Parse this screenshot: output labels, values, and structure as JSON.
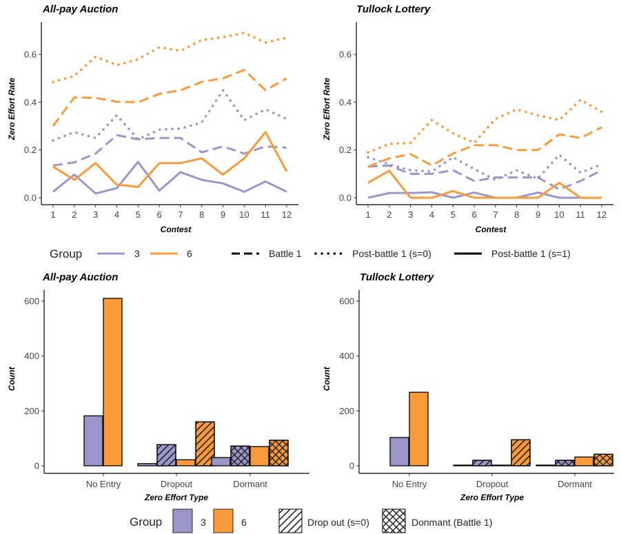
{
  "colors": {
    "group3": "#9a96c9",
    "group6": "#fb9a3b",
    "axis": "#000000",
    "bar_stroke": "#000000"
  },
  "chart_data": [
    {
      "type": "line",
      "title": "All-pay Auction",
      "xlabel": "Contest",
      "ylabel": "Zero Effort Rate",
      "x": [
        1,
        2,
        3,
        4,
        5,
        6,
        7,
        8,
        9,
        10,
        11,
        12
      ],
      "xlim": [
        1,
        12
      ],
      "ylim": [
        0,
        0.7
      ],
      "yticks": [
        0.0,
        0.2,
        0.4,
        0.6
      ],
      "ytick_labels": [
        "0.0",
        "0.2",
        "0.4",
        "0.6"
      ],
      "grid": false,
      "series": [
        {
          "group": "3",
          "type": "Battle 1",
          "values": [
            0.135,
            0.148,
            0.185,
            0.262,
            0.245,
            0.25,
            0.25,
            0.19,
            0.215,
            0.185,
            0.215,
            0.21
          ]
        },
        {
          "group": "3",
          "type": "Post-battle 1 (s=0)",
          "values": [
            0.24,
            0.275,
            0.25,
            0.345,
            0.245,
            0.285,
            0.29,
            0.315,
            0.45,
            0.325,
            0.37,
            0.33
          ]
        },
        {
          "group": "3",
          "type": "Post-battle 1 (s=1)",
          "values": [
            0.025,
            0.097,
            0.018,
            0.04,
            0.15,
            0.03,
            0.107,
            0.075,
            0.06,
            0.025,
            0.068,
            0.025
          ]
        },
        {
          "group": "6",
          "type": "Battle 1",
          "values": [
            0.3,
            0.42,
            0.418,
            0.402,
            0.4,
            0.435,
            0.45,
            0.485,
            0.5,
            0.535,
            0.45,
            0.5
          ]
        },
        {
          "group": "6",
          "type": "Post-battle 1 (s=0)",
          "values": [
            0.485,
            0.51,
            0.59,
            0.555,
            0.58,
            0.63,
            0.615,
            0.66,
            0.672,
            0.69,
            0.65,
            0.67
          ]
        },
        {
          "group": "6",
          "type": "Post-battle 1 (s=1)",
          "values": [
            0.13,
            0.075,
            0.145,
            0.055,
            0.045,
            0.145,
            0.145,
            0.165,
            0.097,
            0.165,
            0.275,
            0.11
          ]
        }
      ]
    },
    {
      "type": "line",
      "title": "Tullock Lottery",
      "xlabel": "Contest",
      "ylabel": "Zero Effort Rate",
      "x": [
        1,
        2,
        3,
        4,
        5,
        6,
        7,
        8,
        9,
        10,
        11,
        12
      ],
      "xlim": [
        1,
        12
      ],
      "ylim": [
        0,
        0.7
      ],
      "yticks": [
        0.0,
        0.2,
        0.4,
        0.6
      ],
      "ytick_labels": [
        "0.0",
        "0.2",
        "0.4",
        "0.6"
      ],
      "grid": false,
      "series": [
        {
          "group": "3",
          "type": "Battle 1",
          "values": [
            0.13,
            0.135,
            0.1,
            0.1,
            0.115,
            0.07,
            0.085,
            0.085,
            0.085,
            0.035,
            0.07,
            0.115
          ]
        },
        {
          "group": "3",
          "type": "Post-battle 1 (s=0)",
          "values": [
            0.17,
            0.14,
            0.115,
            0.11,
            0.17,
            0.12,
            0.075,
            0.115,
            0.08,
            0.18,
            0.105,
            0.14
          ]
        },
        {
          "group": "3",
          "type": "Post-battle 1 (s=1)",
          "values": [
            0.0,
            0.02,
            0.02,
            0.023,
            0.0,
            0.022,
            0.0,
            0.0,
            0.022,
            0.0,
            0.0,
            0.0
          ]
        },
        {
          "group": "6",
          "type": "Battle 1",
          "values": [
            0.13,
            0.165,
            0.183,
            0.135,
            0.185,
            0.22,
            0.22,
            0.2,
            0.2,
            0.265,
            0.25,
            0.295
          ]
        },
        {
          "group": "6",
          "type": "Post-battle 1 (s=0)",
          "values": [
            0.19,
            0.225,
            0.23,
            0.325,
            0.27,
            0.23,
            0.33,
            0.37,
            0.345,
            0.325,
            0.41,
            0.36
          ]
        },
        {
          "group": "6",
          "type": "Post-battle 1 (s=1)",
          "values": [
            0.063,
            0.113,
            0.0,
            0.0,
            0.028,
            0.0,
            0.0,
            0.0,
            0.0,
            0.063,
            0.0,
            0.0
          ]
        }
      ]
    },
    {
      "type": "bar",
      "title": "All-pay Auction",
      "xlabel": "Zero Effort Type",
      "ylabel": "Count",
      "categories": [
        "No Entry",
        "Dropout",
        "Dormant"
      ],
      "ylim": [
        0,
        640
      ],
      "yticks": [
        0,
        200,
        400,
        600
      ],
      "ytick_labels": [
        "0",
        "200",
        "400",
        "600"
      ],
      "grid": false,
      "bars": [
        {
          "category": "No Entry",
          "group": "3",
          "pattern": "none",
          "value": 182
        },
        {
          "category": "No Entry",
          "group": "6",
          "pattern": "none",
          "value": 610
        },
        {
          "category": "Dropout",
          "group": "3",
          "pattern": "none",
          "value": 8
        },
        {
          "category": "Dropout",
          "group": "3",
          "pattern": "stripe",
          "value": 77
        },
        {
          "category": "Dropout",
          "group": "6",
          "pattern": "none",
          "value": 22
        },
        {
          "category": "Dropout",
          "group": "6",
          "pattern": "stripe",
          "value": 160
        },
        {
          "category": "Dormant",
          "group": "3",
          "pattern": "none",
          "value": 30
        },
        {
          "category": "Dormant",
          "group": "3",
          "pattern": "crosshatch",
          "value": 72
        },
        {
          "category": "Dormant",
          "group": "6",
          "pattern": "none",
          "value": 70
        },
        {
          "category": "Dormant",
          "group": "6",
          "pattern": "crosshatch",
          "value": 93
        }
      ]
    },
    {
      "type": "bar",
      "title": "Tullock Lottery",
      "xlabel": "Zero Effort Type",
      "ylabel": "Count",
      "categories": [
        "No Entry",
        "Dropout",
        "Dormant"
      ],
      "ylim": [
        0,
        640
      ],
      "yticks": [
        0,
        200,
        400,
        600
      ],
      "ytick_labels": [
        "0",
        "200",
        "400",
        "600"
      ],
      "grid": false,
      "bars": [
        {
          "category": "No Entry",
          "group": "3",
          "pattern": "none",
          "value": 103
        },
        {
          "category": "No Entry",
          "group": "6",
          "pattern": "none",
          "value": 268
        },
        {
          "category": "Dropout",
          "group": "3",
          "pattern": "none",
          "value": 2
        },
        {
          "category": "Dropout",
          "group": "3",
          "pattern": "stripe",
          "value": 20
        },
        {
          "category": "Dropout",
          "group": "6",
          "pattern": "none",
          "value": 2
        },
        {
          "category": "Dropout",
          "group": "6",
          "pattern": "stripe",
          "value": 95
        },
        {
          "category": "Dormant",
          "group": "3",
          "pattern": "none",
          "value": 2
        },
        {
          "category": "Dormant",
          "group": "3",
          "pattern": "crosshatch",
          "value": 20
        },
        {
          "category": "Dormant",
          "group": "6",
          "pattern": "none",
          "value": 32
        },
        {
          "category": "Dormant",
          "group": "6",
          "pattern": "crosshatch",
          "value": 42
        }
      ]
    }
  ],
  "legend_top": {
    "placement": "between-rows",
    "group_title": "Group",
    "groups": [
      "3",
      "6"
    ],
    "types": [
      "Battle 1",
      "Post-battle 1 (s=0)",
      "Post-battle 1 (s=1)"
    ]
  },
  "legend_bottom": {
    "placement": "bottom",
    "group_title": "Group",
    "groups": [
      "3",
      "6"
    ],
    "patterns": [
      "Drop out (s=0)",
      "Donmant (Battle 1)"
    ]
  }
}
